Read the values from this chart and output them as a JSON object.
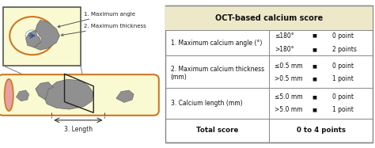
{
  "title": "OCT-based calcium score",
  "table_bg": "#FAFAFA",
  "table_header_bg": "#F0EED8",
  "table_border": "#999999",
  "row1_label": "1. Maximum calcium angle (°)",
  "row1_cond1": "≤180°",
  "row1_val1": "0 point",
  "row1_cond2": ">180°",
  "row1_val2": "2 points",
  "row2_label": "2. Maximum calcium thickness\n(mm)",
  "row2_cond1": "≤0.5 mm",
  "row2_val1": "0 point",
  "row2_cond2": ">0.5 mm",
  "row2_val2": "1 point",
  "row3_label": "3. Calcium length (mm)",
  "row3_cond1": "≤5.0 mm",
  "row3_val1": "0 point",
  "row3_cond2": ">5.0 mm",
  "row3_val2": "1 point",
  "total_label": "Total score",
  "total_value": "0 to 4 points",
  "annotation1": "1. Maximum angle",
  "annotation2": "2. Maximum thickness",
  "annotation3": "3. Length",
  "inset_bg": "#FAFAD2",
  "vessel_fill": "#FAFAD2",
  "vessel_edge": "#CC7722",
  "calcium_fill": "#909090",
  "calcium_edge": "#666666",
  "endcap_fill": "#E8A0A0",
  "arrow_color": "#555555",
  "dash_color": "#444444",
  "line_color": "#777777"
}
